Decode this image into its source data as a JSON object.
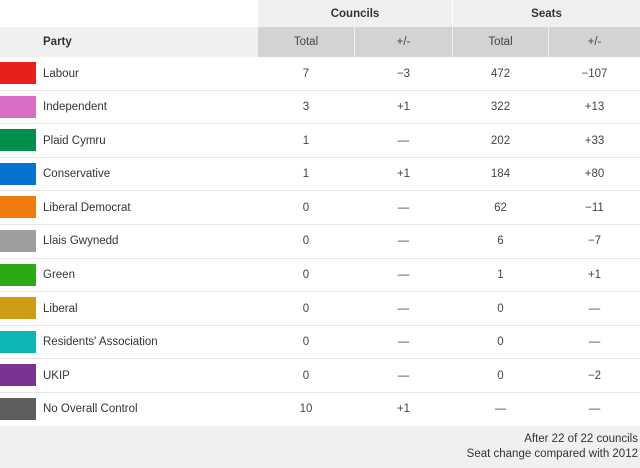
{
  "headers": {
    "group_councils": "Councils",
    "group_seats": "Seats",
    "party": "Party",
    "councils_total": "Total",
    "councils_change": "+/-",
    "seats_total": "Total",
    "seats_change": "+/-"
  },
  "rows": [
    {
      "party": "Labour",
      "color": "#e8201c",
      "councils_total": "7",
      "councils_change": "−3",
      "councils_change_sign": "neg",
      "seats_total": "472",
      "seats_change": "−107",
      "seats_change_sign": "neg"
    },
    {
      "party": "Independent",
      "color": "#d86ec4",
      "councils_total": "3",
      "councils_change": "+1",
      "councils_change_sign": "pos",
      "seats_total": "322",
      "seats_change": "+13",
      "seats_change_sign": "pos"
    },
    {
      "party": "Plaid Cymru",
      "color": "#008e4d",
      "councils_total": "1",
      "councils_change": "—",
      "councils_change_sign": "neu",
      "seats_total": "202",
      "seats_change": "+33",
      "seats_change_sign": "pos"
    },
    {
      "party": "Conservative",
      "color": "#0673d2",
      "councils_total": "1",
      "councils_change": "+1",
      "councils_change_sign": "pos",
      "seats_total": "184",
      "seats_change": "+80",
      "seats_change_sign": "pos"
    },
    {
      "party": "Liberal Democrat",
      "color": "#f07c0e",
      "councils_total": "0",
      "councils_change": "—",
      "councils_change_sign": "neu",
      "seats_total": "62",
      "seats_change": "−11",
      "seats_change_sign": "neg"
    },
    {
      "party": "Llais Gwynedd",
      "color": "#9e9e9e",
      "councils_total": "0",
      "councils_change": "—",
      "councils_change_sign": "neu",
      "seats_total": "6",
      "seats_change": "−7",
      "seats_change_sign": "neg"
    },
    {
      "party": "Green",
      "color": "#2aaa14",
      "councils_total": "0",
      "councils_change": "—",
      "councils_change_sign": "neu",
      "seats_total": "1",
      "seats_change": "+1",
      "seats_change_sign": "pos"
    },
    {
      "party": "Liberal",
      "color": "#d09c14",
      "councils_total": "0",
      "councils_change": "—",
      "councils_change_sign": "neu",
      "seats_total": "0",
      "seats_change": "—",
      "seats_change_sign": "neu"
    },
    {
      "party": "Residents' Association",
      "color": "#0db5b5",
      "councils_total": "0",
      "councils_change": "—",
      "councils_change_sign": "neu",
      "seats_total": "0",
      "seats_change": "—",
      "seats_change_sign": "neu"
    },
    {
      "party": "UKIP",
      "color": "#7a3394",
      "councils_total": "0",
      "councils_change": "—",
      "councils_change_sign": "neu",
      "seats_total": "0",
      "seats_change": "−2",
      "seats_change_sign": "neg"
    },
    {
      "party": "No Overall Control",
      "color": "#5e5e5e",
      "councils_total": "10",
      "councils_change": "+1",
      "councils_change_sign": "pos",
      "seats_total": "—",
      "seats_change": "—",
      "seats_change_sign": "neu"
    }
  ],
  "footer": {
    "line1": "After 22 of 22 councils",
    "line2": "Seat change compared with 2012"
  }
}
